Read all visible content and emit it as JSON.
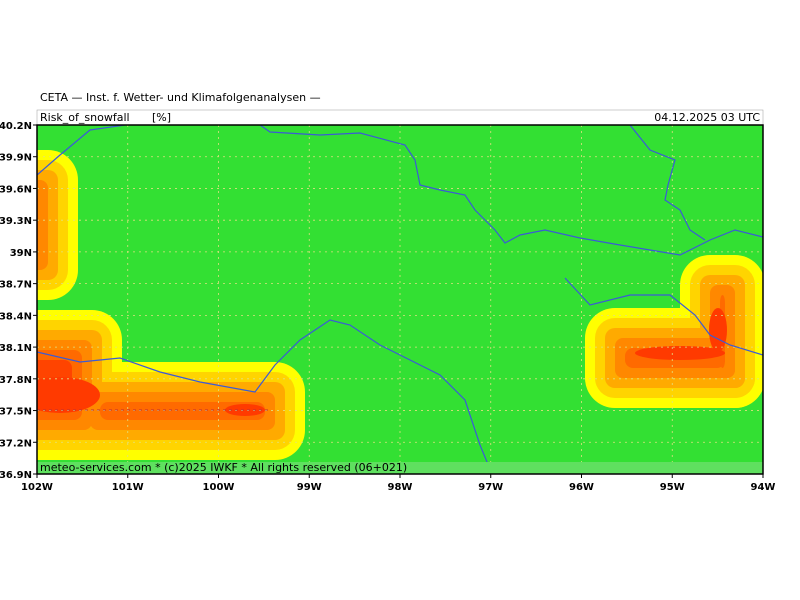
{
  "header": {
    "title": "CETA — Inst. f. Wetter- und Klimafolgenanalysen —",
    "variable": "Risk_of_snowfall",
    "unit": "[%]",
    "valid_time": "04.12.2025 03 UTC"
  },
  "footer": "meteo-services.com * (c)2025 IWKF * All rights reserved (06+021)",
  "map": {
    "lat_range": [
      36.9,
      40.2
    ],
    "lon_range": [
      -102,
      -94
    ],
    "lat_ticks": [
      {
        "value": 40.2,
        "label": "40.2N"
      },
      {
        "value": 39.9,
        "label": "39.9N"
      },
      {
        "value": 39.6,
        "label": "39.6N"
      },
      {
        "value": 39.3,
        "label": "39.3N"
      },
      {
        "value": 39,
        "label": "39N"
      },
      {
        "value": 38.7,
        "label": "38.7N"
      },
      {
        "value": 38.4,
        "label": "38.4N"
      },
      {
        "value": 38.1,
        "label": "38.1N"
      },
      {
        "value": 37.8,
        "label": "37.8N"
      },
      {
        "value": 37.5,
        "label": "37.5N"
      },
      {
        "value": 37.2,
        "label": "37.2N"
      },
      {
        "value": 36.9,
        "label": "36.9N"
      }
    ],
    "lon_ticks": [
      {
        "value": -102,
        "label": "102W"
      },
      {
        "value": -101,
        "label": "101W"
      },
      {
        "value": -100,
        "label": "100W"
      },
      {
        "value": -99,
        "label": "99W"
      },
      {
        "value": -98,
        "label": "98W"
      },
      {
        "value": -97,
        "label": "97W"
      },
      {
        "value": -96,
        "label": "96W"
      },
      {
        "value": -95,
        "label": "95W"
      },
      {
        "value": -94,
        "label": "94W"
      }
    ]
  }
}
